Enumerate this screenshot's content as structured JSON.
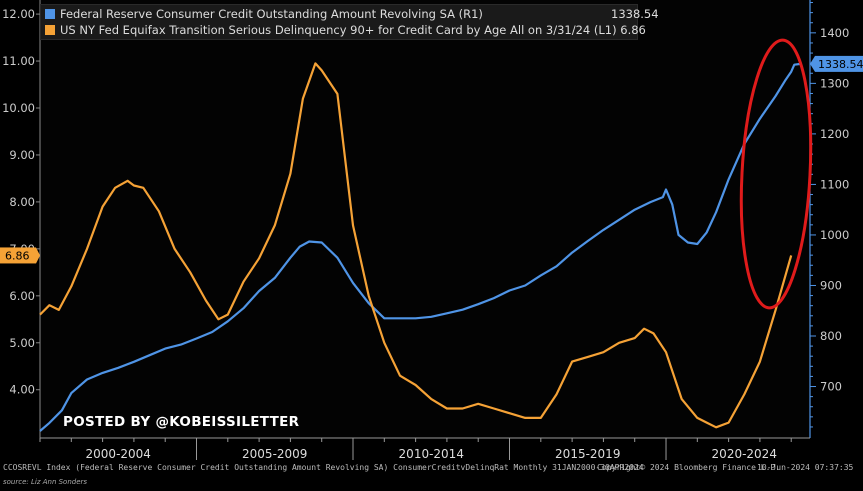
{
  "legend": {
    "items": [
      {
        "label": "Federal Reserve Consumer Credit Outstanding Amount Revolving SA (R1)",
        "value": "1338.54",
        "color": "#4f94e6"
      },
      {
        "label": "US NY Fed Equifax Transition Serious Delinquency 90+ for Credit Card by Age All on 3/31/24 (L1)",
        "value": "6.86",
        "color": "#f5a236"
      }
    ]
  },
  "watermark": "POSTED BY @KOBEISSILETTER",
  "footer": {
    "description": "CCOSREVL Index (Federal Reserve Consumer Credit Outstanding Amount Revolving SA) ConsumerCreditvDelinqRat Monthly 31JAN2000-30APR2024",
    "copyright": "Copyright© 2024 Bloomberg Finance L.P.",
    "date": "10-Jun-2024 07:37:35",
    "source": "source: Liz Ann Sonders"
  },
  "chart_data": {
    "type": "line",
    "xlim": [
      2000.0,
      2024.6
    ],
    "x_categories": [
      "2000-2004",
      "2005-2009",
      "2010-2014",
      "2015-2019",
      "2020-2024"
    ],
    "left_axis": {
      "ticks": [
        "4.00",
        "5.00",
        "6.00",
        "7.00",
        "8.00",
        "9.00",
        "10.00",
        "11.00",
        "12.00"
      ],
      "ylim": [
        3.1,
        12.3
      ],
      "last_value_label": "6.86"
    },
    "right_axis": {
      "ticks": [
        "700",
        "800",
        "900",
        "1000",
        "1100",
        "1200",
        "1300",
        "1400"
      ],
      "ylim": [
        610,
        1465
      ],
      "last_value_label": "1338.54"
    },
    "grid": false,
    "series": [
      {
        "name": "Federal Reserve Consumer Credit Outstanding Amount Revolving SA (R1)",
        "axis": "right",
        "color": "#4f94e6",
        "x": [
          2000.0,
          2000.3,
          2000.7,
          2001.0,
          2001.5,
          2002.0,
          2002.5,
          2003.0,
          2003.5,
          2004.0,
          2004.5,
          2005.0,
          2005.5,
          2006.0,
          2006.5,
          2007.0,
          2007.5,
          2008.0,
          2008.3,
          2008.6,
          2009.0,
          2009.5,
          2010.0,
          2010.5,
          2011.0,
          2011.5,
          2012.0,
          2012.5,
          2013.0,
          2013.5,
          2014.0,
          2014.5,
          2015.0,
          2015.5,
          2016.0,
          2016.5,
          2017.0,
          2017.5,
          2018.0,
          2018.5,
          2019.0,
          2019.5,
          2019.9,
          2020.0,
          2020.2,
          2020.4,
          2020.7,
          2021.0,
          2021.3,
          2021.6,
          2022.0,
          2022.5,
          2023.0,
          2023.5,
          2023.8,
          2024.0,
          2024.1,
          2024.3
        ],
        "y": [
          612,
          628,
          653,
          687,
          714,
          727,
          737,
          749,
          762,
          775,
          783,
          795,
          808,
          829,
          855,
          889,
          915,
          955,
          977,
          987,
          985,
          955,
          905,
          865,
          835,
          835,
          835,
          838,
          845,
          852,
          863,
          875,
          890,
          900,
          920,
          938,
          965,
          988,
          1010,
          1030,
          1050,
          1065,
          1075,
          1090,
          1060,
          1000,
          985,
          982,
          1005,
          1045,
          1110,
          1180,
          1230,
          1275,
          1305,
          1323,
          1337,
          1338.54
        ]
      },
      {
        "name": "US NY Fed Equifax Transition Serious Delinquency 90+ for Credit Card by Age All on 3/31/24 (L1)",
        "axis": "left",
        "color": "#f5a236",
        "x": [
          2000.0,
          2000.3,
          2000.6,
          2001.0,
          2001.5,
          2002.0,
          2002.4,
          2002.8,
          2003.0,
          2003.3,
          2003.8,
          2004.3,
          2004.8,
          2005.3,
          2005.7,
          2006.0,
          2006.5,
          2007.0,
          2007.5,
          2008.0,
          2008.4,
          2008.8,
          2009.0,
          2009.5,
          2010.0,
          2010.5,
          2011.0,
          2011.5,
          2012.0,
          2012.5,
          2013.0,
          2013.5,
          2014.0,
          2014.5,
          2015.0,
          2015.5,
          2016.0,
          2016.5,
          2017.0,
          2017.5,
          2018.0,
          2018.5,
          2019.0,
          2019.3,
          2019.6,
          2020.0,
          2020.5,
          2021.0,
          2021.3,
          2021.6,
          2022.0,
          2022.5,
          2023.0,
          2023.5,
          2024.0
        ],
        "y": [
          5.6,
          5.8,
          5.7,
          6.2,
          7.0,
          7.9,
          8.3,
          8.45,
          8.35,
          8.3,
          7.8,
          7.0,
          6.5,
          5.9,
          5.5,
          5.6,
          6.3,
          6.8,
          7.5,
          8.6,
          10.2,
          10.95,
          10.8,
          10.3,
          7.5,
          6.0,
          5.0,
          4.3,
          4.1,
          3.8,
          3.6,
          3.6,
          3.7,
          3.6,
          3.5,
          3.4,
          3.4,
          3.9,
          4.6,
          4.7,
          4.8,
          5.0,
          5.1,
          5.3,
          5.2,
          4.8,
          3.8,
          3.4,
          3.3,
          3.2,
          3.3,
          3.9,
          4.6,
          5.7,
          6.86
        ]
      }
    ]
  },
  "annotation": {
    "shape": "ellipse",
    "color": "#e01b1b"
  }
}
